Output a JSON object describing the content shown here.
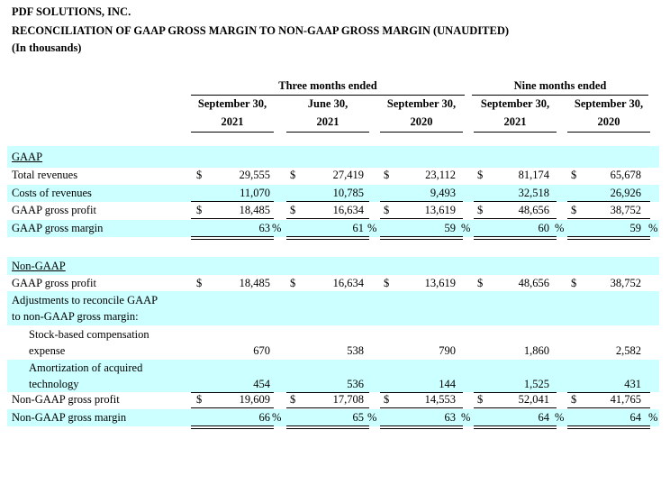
{
  "header": {
    "company": "PDF SOLUTIONS, INC.",
    "title": "RECONCILIATION OF GAAP GROSS MARGIN TO NON-GAAP GROSS MARGIN (UNAUDITED)",
    "units": "(In thousands)"
  },
  "groups": {
    "three_months": "Three months ended",
    "nine_months": "Nine months ended"
  },
  "columns": [
    {
      "line1": "September 30,",
      "line2": "2021"
    },
    {
      "line1": "June 30,",
      "line2": "2021"
    },
    {
      "line1": "September 30,",
      "line2": "2020"
    },
    {
      "line1": "September 30,",
      "line2": "2021"
    },
    {
      "line1": "September 30,",
      "line2": "2020"
    }
  ],
  "symbols": {
    "currency": "$",
    "percent": "%"
  },
  "gaap": {
    "section_label": "GAAP",
    "total_revenues": {
      "label": "Total revenues",
      "values": [
        "29,555",
        "27,419",
        "23,112",
        "81,174",
        "65,678"
      ]
    },
    "costs_of_revenues": {
      "label": "Costs of revenues",
      "values": [
        "11,070",
        "10,785",
        "9,493",
        "32,518",
        "26,926"
      ]
    },
    "gross_profit": {
      "label": "GAAP gross profit",
      "values": [
        "18,485",
        "16,634",
        "13,619",
        "48,656",
        "38,752"
      ]
    },
    "gross_margin": {
      "label": "GAAP gross margin",
      "values": [
        "63",
        "61",
        "59",
        "60",
        "59"
      ]
    }
  },
  "non_gaap": {
    "section_label": "Non-GAAP",
    "gaap_gross_profit": {
      "label": "GAAP gross profit",
      "values": [
        "18,485",
        "16,634",
        "13,619",
        "48,656",
        "38,752"
      ]
    },
    "adjustments_label_1": "Adjustments to reconcile GAAP",
    "adjustments_label_2": "to non-GAAP gross margin:",
    "stock_comp": {
      "label_1": "Stock-based compensation",
      "label_2": "expense",
      "values": [
        "670",
        "538",
        "790",
        "1,860",
        "2,582"
      ]
    },
    "amortization": {
      "label_1": "Amortization of acquired",
      "label_2": "technology",
      "values": [
        "454",
        "536",
        "144",
        "1,525",
        "431"
      ]
    },
    "gross_profit": {
      "label": "Non-GAAP gross profit",
      "values": [
        "19,609",
        "17,708",
        "14,553",
        "52,041",
        "41,765"
      ]
    },
    "gross_margin": {
      "label": "Non-GAAP gross margin",
      "values": [
        "66",
        "65",
        "63",
        "64",
        "64"
      ]
    }
  }
}
